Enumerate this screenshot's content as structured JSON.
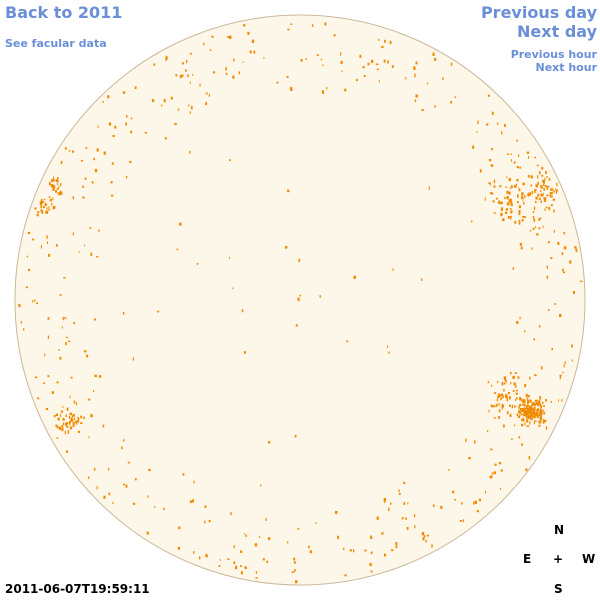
{
  "nav": {
    "back_label": "Back to 2011",
    "facular_label": "See facular data",
    "prev_day_label": "Previous day",
    "next_day_label": "Next day",
    "prev_hour_label": "Previous hour",
    "next_hour_label": "Next hour"
  },
  "timestamp": "2011-06-07T19:59:11",
  "compass": {
    "north": "N",
    "south": "S",
    "east": "E",
    "west": "W",
    "center": "+"
  },
  "colors": {
    "disk_fill": "#fdf7ea",
    "disk_edge": "#c9b99a",
    "facula": "#f08a00",
    "link": "#6a8fd8"
  }
}
